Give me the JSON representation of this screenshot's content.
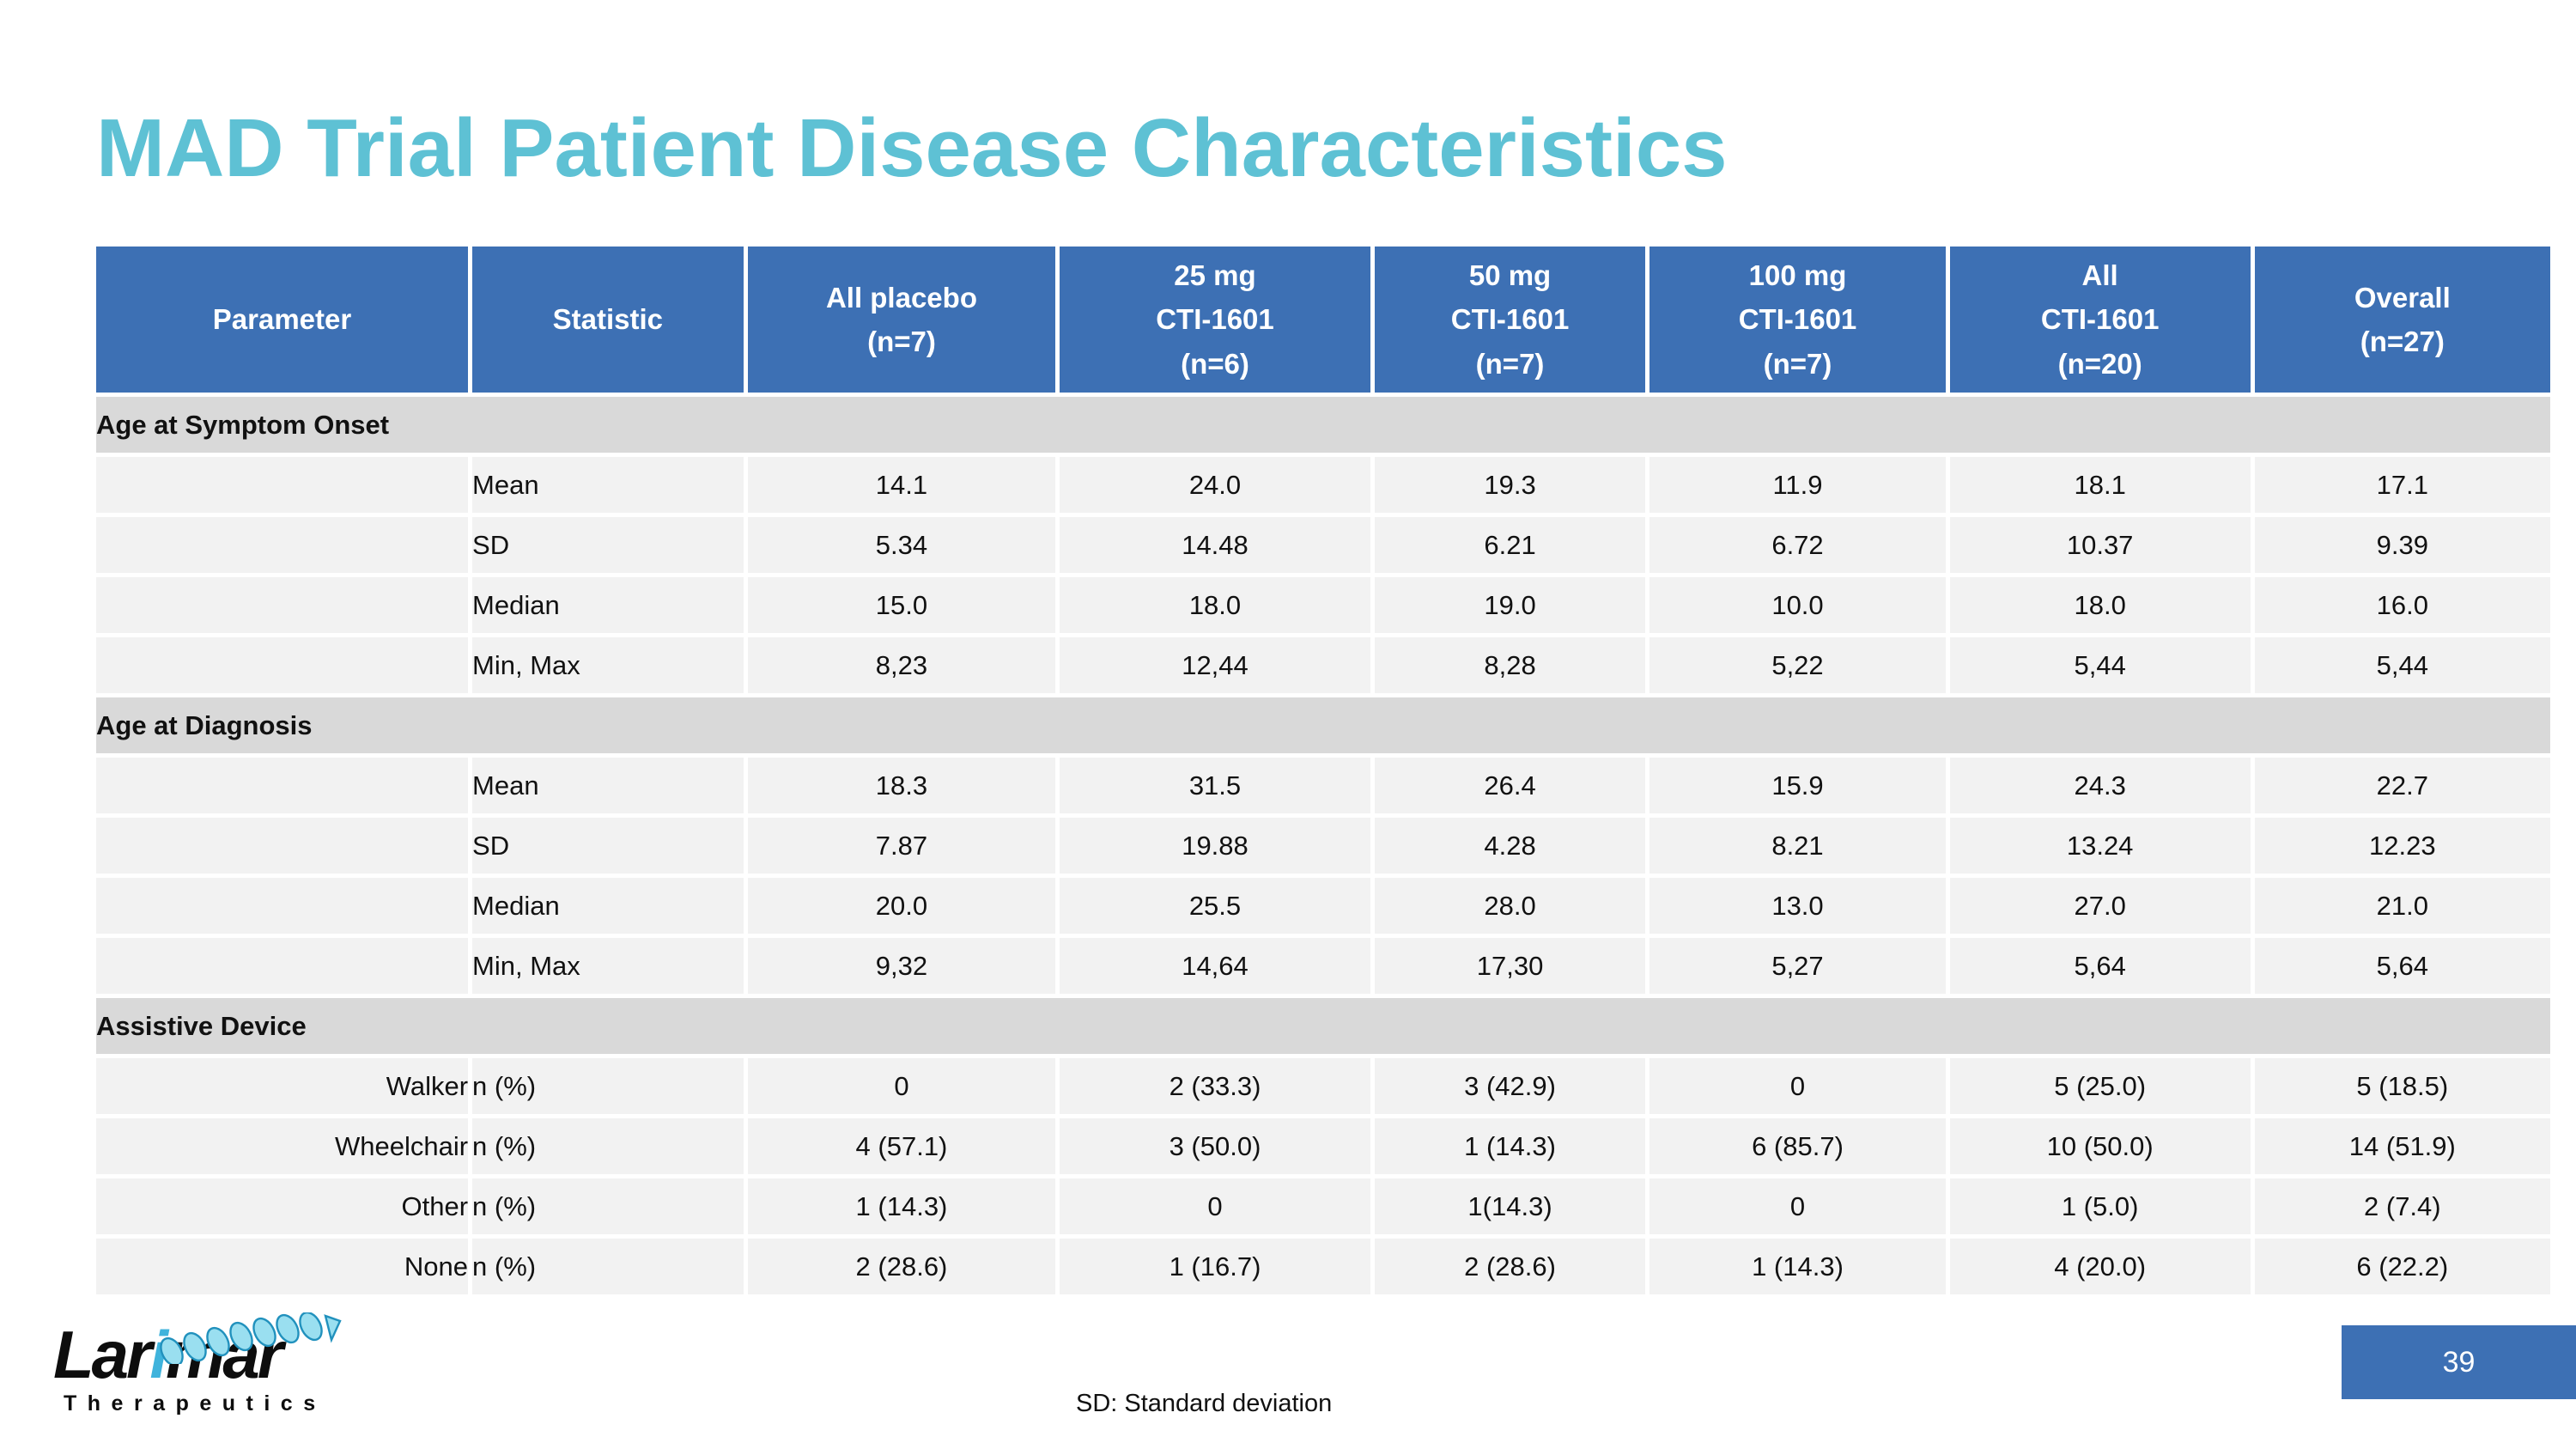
{
  "slide": {
    "title": "MAD Trial Patient Disease Characteristics",
    "footer_note": "SD: Standard deviation",
    "page_number": "39"
  },
  "logo": {
    "brand_left": "Lar",
    "brand_accent": "i",
    "brand_right": "mar",
    "sub": "Therapeutics",
    "helix_icon": "protein-helix-ribbon"
  },
  "colors": {
    "header_blue": "#3d70b4",
    "title_teal": "#5ec1d4",
    "section_gray": "#d9d9d9",
    "row_gray": "#f2f2f2",
    "logo_blue": "#3fb3dc"
  },
  "table": {
    "column_widths_pct": [
      15.3,
      11.2,
      12.7,
      12.8,
      11.2,
      12.2,
      12.4,
      12.2
    ],
    "columns": [
      "Parameter",
      "Statistic",
      "All placebo\n(n=7)",
      "25 mg\nCTI-1601\n(n=6)",
      "50 mg\nCTI-1601\n(n=7)",
      "100 mg\nCTI-1601\n(n=7)",
      "All\nCTI-1601\n(n=20)",
      "Overall\n(n=27)"
    ],
    "sections": [
      {
        "label": "Age at Symptom Onset",
        "rows": [
          {
            "parameter": "",
            "statistic": "Mean",
            "values": [
              "14.1",
              "24.0",
              "19.3",
              "11.9",
              "18.1",
              "17.1"
            ]
          },
          {
            "parameter": "",
            "statistic": "SD",
            "values": [
              "5.34",
              "14.48",
              "6.21",
              "6.72",
              "10.37",
              "9.39"
            ]
          },
          {
            "parameter": "",
            "statistic": "Median",
            "values": [
              "15.0",
              "18.0",
              "19.0",
              "10.0",
              "18.0",
              "16.0"
            ]
          },
          {
            "parameter": "",
            "statistic": "Min, Max",
            "values": [
              "8,23",
              "12,44",
              "8,28",
              "5,22",
              "5,44",
              "5,44"
            ]
          }
        ]
      },
      {
        "label": "Age at Diagnosis",
        "rows": [
          {
            "parameter": "",
            "statistic": "Mean",
            "values": [
              "18.3",
              "31.5",
              "26.4",
              "15.9",
              "24.3",
              "22.7"
            ]
          },
          {
            "parameter": "",
            "statistic": "SD",
            "values": [
              "7.87",
              "19.88",
              "4.28",
              "8.21",
              "13.24",
              "12.23"
            ]
          },
          {
            "parameter": "",
            "statistic": "Median",
            "values": [
              "20.0",
              "25.5",
              "28.0",
              "13.0",
              "27.0",
              "21.0"
            ]
          },
          {
            "parameter": "",
            "statistic": "Min, Max",
            "values": [
              "9,32",
              "14,64",
              "17,30",
              "5,27",
              "5,64",
              "5,64"
            ]
          }
        ]
      },
      {
        "label": "Assistive Device",
        "rows": [
          {
            "parameter": "Walker",
            "statistic": "n (%)",
            "values": [
              "0",
              "2 (33.3)",
              "3 (42.9)",
              "0",
              "5 (25.0)",
              "5 (18.5)"
            ]
          },
          {
            "parameter": "Wheelchair",
            "statistic": "n (%)",
            "values": [
              "4 (57.1)",
              "3 (50.0)",
              "1 (14.3)",
              "6 (85.7)",
              "10 (50.0)",
              "14 (51.9)"
            ]
          },
          {
            "parameter": "Other",
            "statistic": "n (%)",
            "values": [
              "1 (14.3)",
              "0",
              "1(14.3)",
              "0",
              "1 (5.0)",
              "2 (7.4)"
            ]
          },
          {
            "parameter": "None",
            "statistic": "n (%)",
            "values": [
              "2 (28.6)",
              "1 (16.7)",
              "2 (28.6)",
              "1 (14.3)",
              "4 (20.0)",
              "6 (22.2)"
            ]
          }
        ]
      }
    ]
  }
}
